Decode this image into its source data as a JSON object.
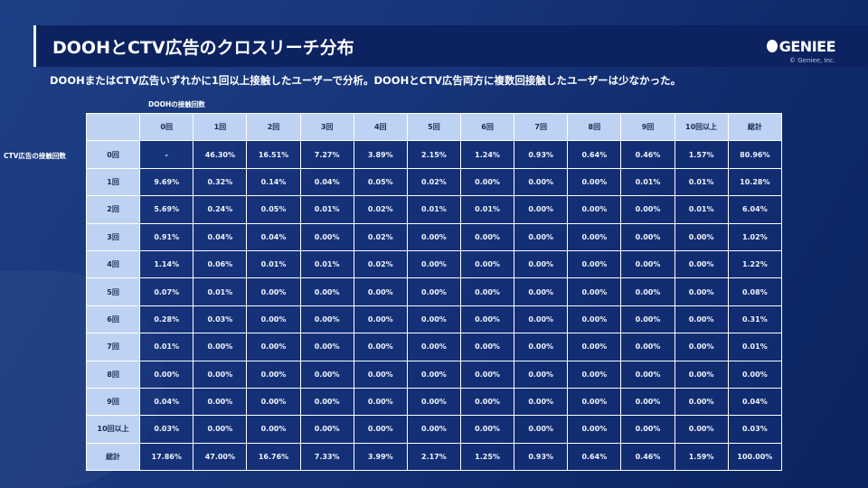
{
  "title": "DOOHとCTV広告のクロスリーチ分布",
  "logo": "GENIEE",
  "copyright": "© Geniee, Inc.",
  "subtitle": "DOOHまたはCTV広告いずれかに1回以上接触したユーザーで分析。DOOHとCTV広告両方に複数回接触したユーザーは少なかった。",
  "x_axis_label": "DOOHの接触回数",
  "y_axis_label": "CTV広告の接触回数",
  "columns": [
    "0回",
    "1回",
    "2回",
    "3回",
    "4回",
    "5回",
    "6回",
    "7回",
    "8回",
    "9回",
    "10回以上",
    "総計"
  ],
  "rows": [
    {
      "label": "0回",
      "values": [
        "-",
        "46.30%",
        "16.51%",
        "7.27%",
        "3.89%",
        "2.15%",
        "1.24%",
        "0.93%",
        "0.64%",
        "0.46%",
        "1.57%",
        "80.96%"
      ]
    },
    {
      "label": "1回",
      "values": [
        "9.69%",
        "0.32%",
        "0.14%",
        "0.04%",
        "0.05%",
        "0.02%",
        "0.00%",
        "0.00%",
        "0.00%",
        "0.01%",
        "0.01%",
        "10.28%"
      ]
    },
    {
      "label": "2回",
      "values": [
        "5.69%",
        "0.24%",
        "0.05%",
        "0.01%",
        "0.02%",
        "0.01%",
        "0.01%",
        "0.00%",
        "0.00%",
        "0.00%",
        "0.01%",
        "6.04%"
      ]
    },
    {
      "label": "3回",
      "values": [
        "0.91%",
        "0.04%",
        "0.04%",
        "0.00%",
        "0.02%",
        "0.00%",
        "0.00%",
        "0.00%",
        "0.00%",
        "0.00%",
        "0.00%",
        "1.02%"
      ]
    },
    {
      "label": "4回",
      "values": [
        "1.14%",
        "0.06%",
        "0.01%",
        "0.01%",
        "0.02%",
        "0.00%",
        "0.00%",
        "0.00%",
        "0.00%",
        "0.00%",
        "0.00%",
        "1.22%"
      ]
    },
    {
      "label": "5回",
      "values": [
        "0.07%",
        "0.01%",
        "0.00%",
        "0.00%",
        "0.00%",
        "0.00%",
        "0.00%",
        "0.00%",
        "0.00%",
        "0.00%",
        "0.00%",
        "0.08%"
      ]
    },
    {
      "label": "6回",
      "values": [
        "0.28%",
        "0.03%",
        "0.00%",
        "0.00%",
        "0.00%",
        "0.00%",
        "0.00%",
        "0.00%",
        "0.00%",
        "0.00%",
        "0.00%",
        "0.31%"
      ]
    },
    {
      "label": "7回",
      "values": [
        "0.01%",
        "0.00%",
        "0.00%",
        "0.00%",
        "0.00%",
        "0.00%",
        "0.00%",
        "0.00%",
        "0.00%",
        "0.00%",
        "0.00%",
        "0.01%"
      ]
    },
    {
      "label": "8回",
      "values": [
        "0.00%",
        "0.00%",
        "0.00%",
        "0.00%",
        "0.00%",
        "0.00%",
        "0.00%",
        "0.00%",
        "0.00%",
        "0.00%",
        "0.00%",
        "0.00%"
      ]
    },
    {
      "label": "9回",
      "values": [
        "0.04%",
        "0.00%",
        "0.00%",
        "0.00%",
        "0.00%",
        "0.00%",
        "0.00%",
        "0.00%",
        "0.00%",
        "0.00%",
        "0.00%",
        "0.04%"
      ]
    },
    {
      "label": "10回以上",
      "values": [
        "0.03%",
        "0.00%",
        "0.00%",
        "0.00%",
        "0.00%",
        "0.00%",
        "0.00%",
        "0.00%",
        "0.00%",
        "0.00%",
        "0.00%",
        "0.03%"
      ]
    },
    {
      "label": "総計",
      "values": [
        "17.86%",
        "47.00%",
        "16.76%",
        "7.33%",
        "3.99%",
        "2.17%",
        "1.25%",
        "0.93%",
        "0.64%",
        "0.46%",
        "1.59%",
        "100.00%"
      ]
    }
  ]
}
